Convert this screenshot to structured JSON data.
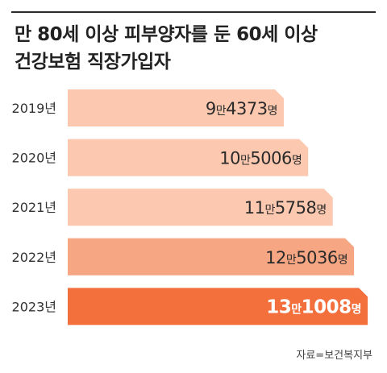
{
  "title_lines": [
    "만 80세 이상 피부양자를 둔 60세 이상",
    "건강보험 직장가입자"
  ],
  "source": "자료=보건복지부",
  "colors": {
    "light": "#fcc9b0",
    "mid": "#f7a683",
    "strong": "#f36f3c"
  },
  "chart_data": {
    "type": "bar",
    "orientation": "horizontal",
    "categories": [
      "2019년",
      "2020년",
      "2021년",
      "2022년",
      "2023년"
    ],
    "values": [
      94373,
      105006,
      115758,
      125036,
      131008
    ],
    "value_labels": [
      {
        "man": "9",
        "rest": "4373"
      },
      {
        "man": "10",
        "rest": "5006"
      },
      {
        "man": "11",
        "rest": "5758"
      },
      {
        "man": "12",
        "rest": "5036"
      },
      {
        "man": "13",
        "rest": "1008"
      }
    ],
    "unit_man": "만",
    "unit_person": "명",
    "title": "만 80세 이상 피부양자를 둔 60세 이상 건강보험 직장가입자",
    "grid": false
  }
}
